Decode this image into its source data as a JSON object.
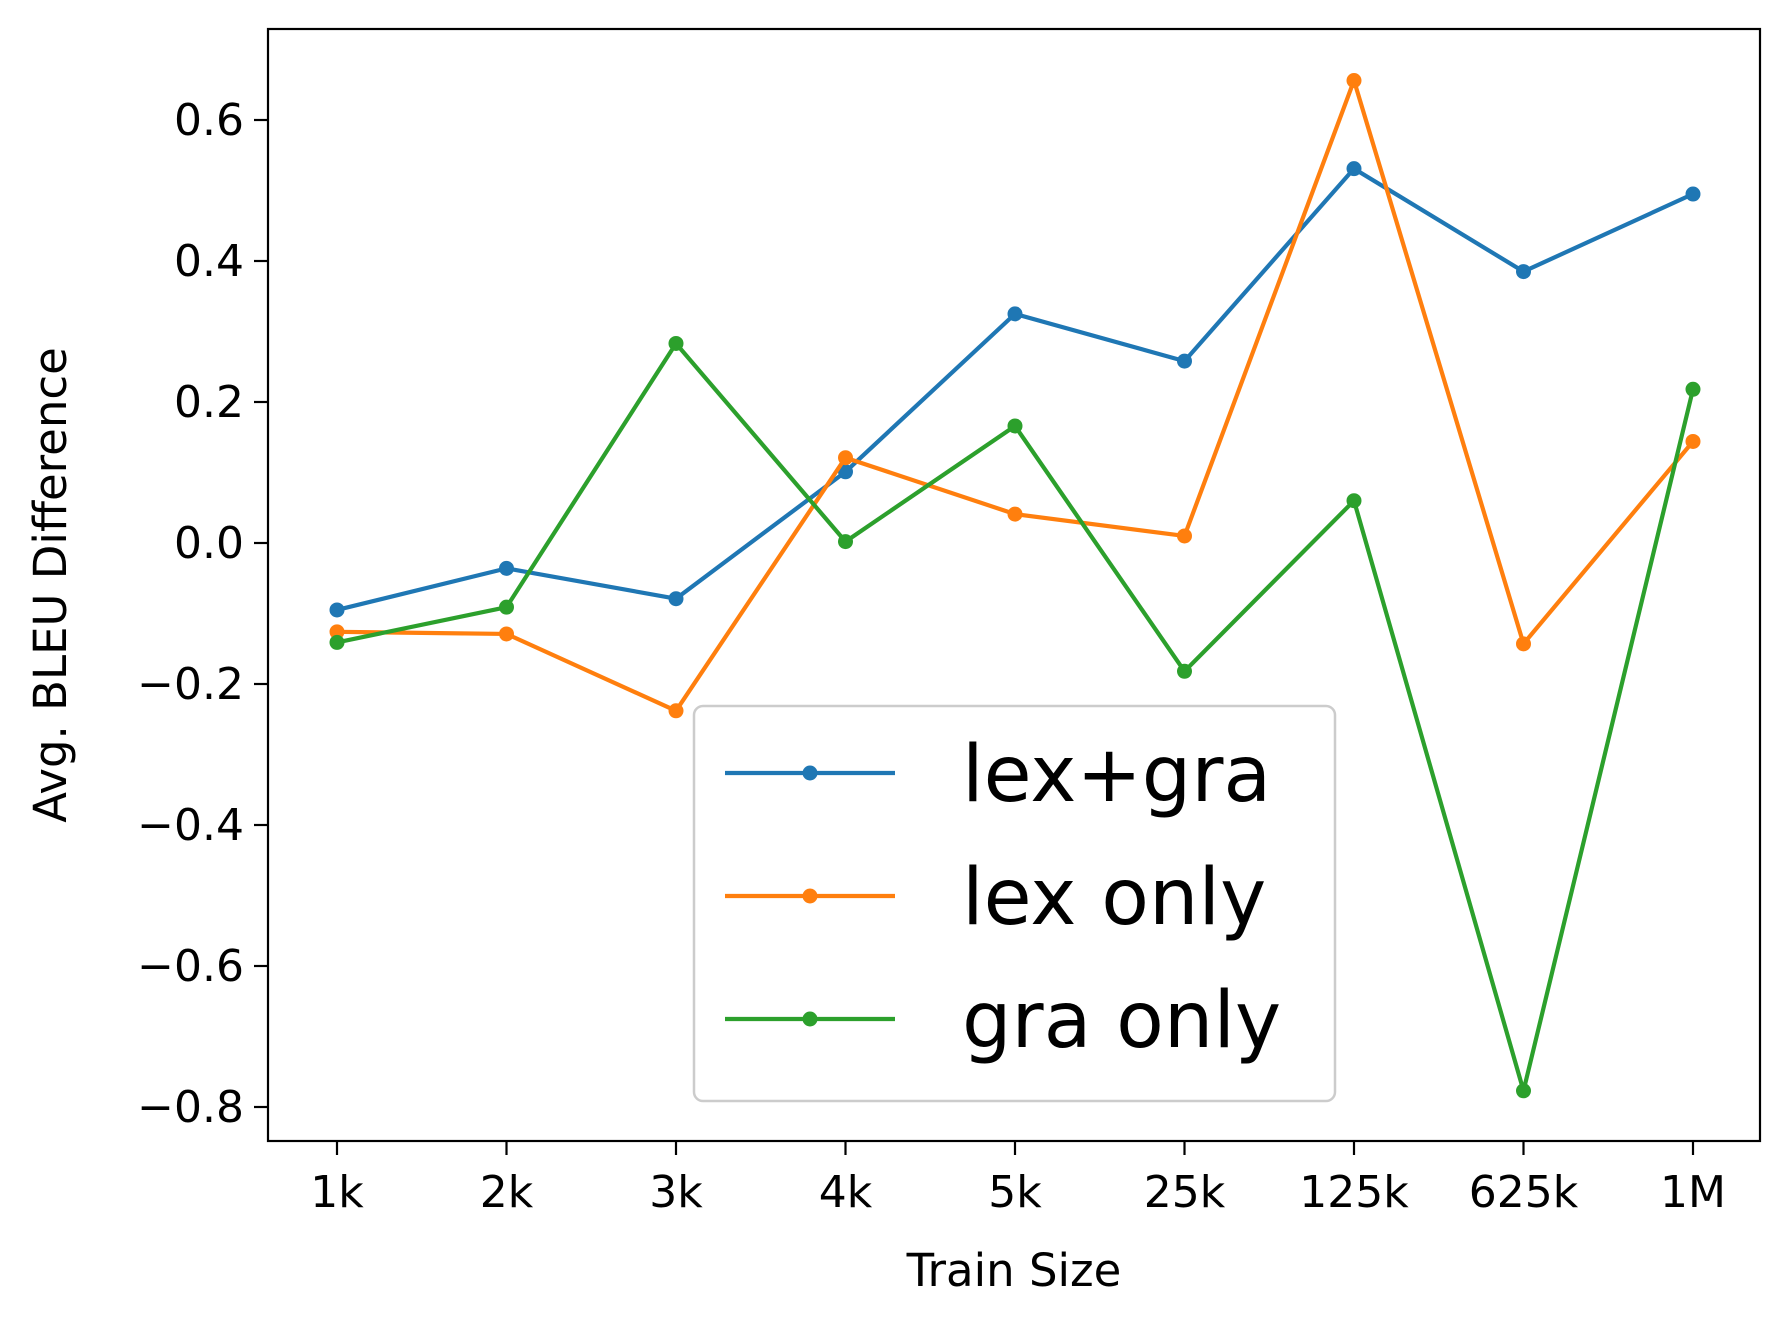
{
  "chart_data": {
    "type": "line",
    "title": "",
    "xlabel": "Train Size",
    "ylabel": "Avg. BLEU Difference",
    "categories": [
      "1k",
      "2k",
      "3k",
      "4k",
      "5k",
      "25k",
      "125k",
      "625k",
      "1M"
    ],
    "ylim": [
      -0.85,
      0.73
    ],
    "yticks": [
      -0.8,
      -0.6,
      -0.4,
      -0.2,
      0.0,
      0.2,
      0.4,
      0.6
    ],
    "ytick_labels": [
      "−0.8",
      "−0.6",
      "−0.4",
      "−0.2",
      "0.0",
      "0.2",
      "0.4",
      "0.6"
    ],
    "grid": false,
    "legend_position": "lower-center",
    "series": [
      {
        "name": "lex+gra",
        "color": "#1f77b4",
        "values": [
          -0.095,
          -0.036,
          -0.079,
          0.101,
          0.325,
          0.258,
          0.531,
          0.385,
          0.495
        ]
      },
      {
        "name": "lex only",
        "color": "#ff7f0e",
        "values": [
          -0.126,
          -0.129,
          -0.238,
          0.121,
          0.041,
          0.01,
          0.656,
          -0.143,
          0.144
        ]
      },
      {
        "name": "gra only",
        "color": "#2ca02c",
        "values": [
          -0.141,
          -0.091,
          0.283,
          0.002,
          0.166,
          -0.182,
          0.06,
          -0.777,
          0.218
        ]
      }
    ]
  }
}
